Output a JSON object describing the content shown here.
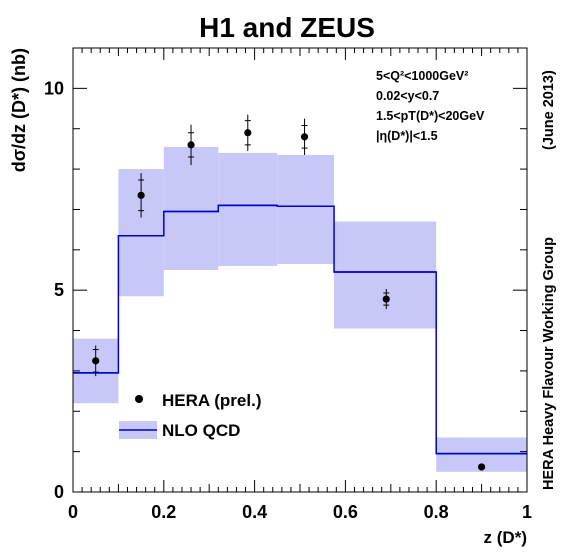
{
  "chart_data": {
    "type": "line",
    "title": "H1 and ZEUS",
    "xlabel": "z (D*)",
    "ylabel": "dσ/dz (D*) (nb)",
    "xlim": [
      0,
      1
    ],
    "ylim": [
      0,
      11
    ],
    "x_ticks": [
      "0",
      "0.2",
      "0.4",
      "0.6",
      "0.8",
      "1"
    ],
    "y_ticks": [
      "0",
      "5",
      "10"
    ],
    "kinematics": [
      "5<Q²<1000GeV²",
      "0.02<y<0.7",
      "1.5<pT(D*)<20GeV",
      "|η(D*)|<1.5"
    ],
    "side_label": "HERA Heavy Flavour Working Group",
    "date_label": "(June 2013)",
    "legend_position": "bottom-left",
    "colors": {
      "band": "#c8c8f8",
      "line": "#0000cc",
      "points": "#000000"
    },
    "series": [
      {
        "name": "NLO QCD",
        "kind": "histogram-band",
        "bins": [
          {
            "x0": 0.0,
            "x1": 0.1,
            "central": 2.95,
            "low": 2.2,
            "high": 3.8
          },
          {
            "x0": 0.1,
            "x1": 0.2,
            "central": 6.35,
            "low": 4.85,
            "high": 8.0
          },
          {
            "x0": 0.2,
            "x1": 0.32,
            "central": 6.95,
            "low": 5.5,
            "high": 8.55
          },
          {
            "x0": 0.32,
            "x1": 0.45,
            "central": 7.1,
            "low": 5.6,
            "high": 8.4
          },
          {
            "x0": 0.45,
            "x1": 0.575,
            "central": 7.08,
            "low": 5.65,
            "high": 8.35
          },
          {
            "x0": 0.575,
            "x1": 0.8,
            "central": 5.45,
            "low": 4.05,
            "high": 6.7
          },
          {
            "x0": 0.8,
            "x1": 1.0,
            "central": 0.95,
            "low": 0.5,
            "high": 1.35
          }
        ]
      },
      {
        "name": "HERA (prel.)",
        "kind": "points",
        "points": [
          {
            "x": 0.05,
            "y": 3.25,
            "err_in": 0.28,
            "err_tot": 0.38
          },
          {
            "x": 0.15,
            "y": 7.35,
            "err_in": 0.38,
            "err_tot": 0.55
          },
          {
            "x": 0.26,
            "y": 8.6,
            "err_in": 0.3,
            "err_tot": 0.5
          },
          {
            "x": 0.385,
            "y": 8.9,
            "err_in": 0.3,
            "err_tot": 0.45
          },
          {
            "x": 0.51,
            "y": 8.8,
            "err_in": 0.28,
            "err_tot": 0.45
          },
          {
            "x": 0.69,
            "y": 4.78,
            "err_in": 0.15,
            "err_tot": 0.25
          },
          {
            "x": 0.9,
            "y": 0.62,
            "err_in": 0.03,
            "err_tot": 0.05
          }
        ]
      }
    ]
  }
}
